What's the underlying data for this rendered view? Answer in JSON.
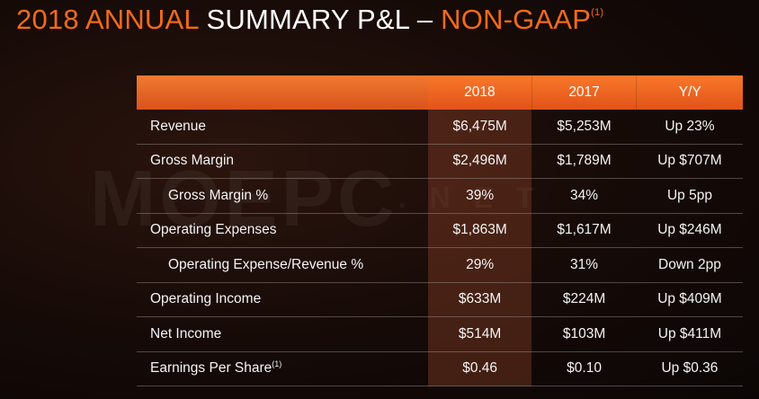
{
  "title": {
    "part1": "2018 ANNUAL",
    "part2": "SUMMARY P&L –",
    "part3": "NON-GAAP",
    "footnote": "(1)"
  },
  "watermark": {
    "main": "MOEPC",
    "suffix": ".NET"
  },
  "table": {
    "headers": [
      "",
      "2018",
      "2017",
      "Y/Y"
    ],
    "rows": [
      {
        "label": "Revenue",
        "v2018": "$6,475M",
        "v2017": "$5,253M",
        "yy": "Up 23%"
      },
      {
        "label": "Gross Margin",
        "v2018": "$2,496M",
        "v2017": "$1,789M",
        "yy": "Up $707M"
      },
      {
        "label": "Gross Margin %",
        "v2018": "39%",
        "v2017": "34%",
        "yy": "Up 5pp"
      },
      {
        "label": "Operating Expenses",
        "v2018": "$1,863M",
        "v2017": "$1,617M",
        "yy": "Up $246M"
      },
      {
        "label": "Operating Expense/Revenue %",
        "v2018": "29%",
        "v2017": "31%",
        "yy": "Down 2pp"
      },
      {
        "label": "Operating Income",
        "v2018": "$633M",
        "v2017": "$224M",
        "yy": "Up $409M"
      },
      {
        "label": "Net Income",
        "v2018": "$514M",
        "v2017": "$103M",
        "yy": "Up $411M"
      },
      {
        "label": "Earnings Per Share",
        "label_footnote": "(1)",
        "v2018": "$0.46",
        "v2017": "$0.10",
        "yy": "Up $0.36"
      }
    ]
  },
  "colors": {
    "accent_orange": "#f26a1b",
    "header_orange": "#e2531a",
    "background": "#150a07"
  }
}
